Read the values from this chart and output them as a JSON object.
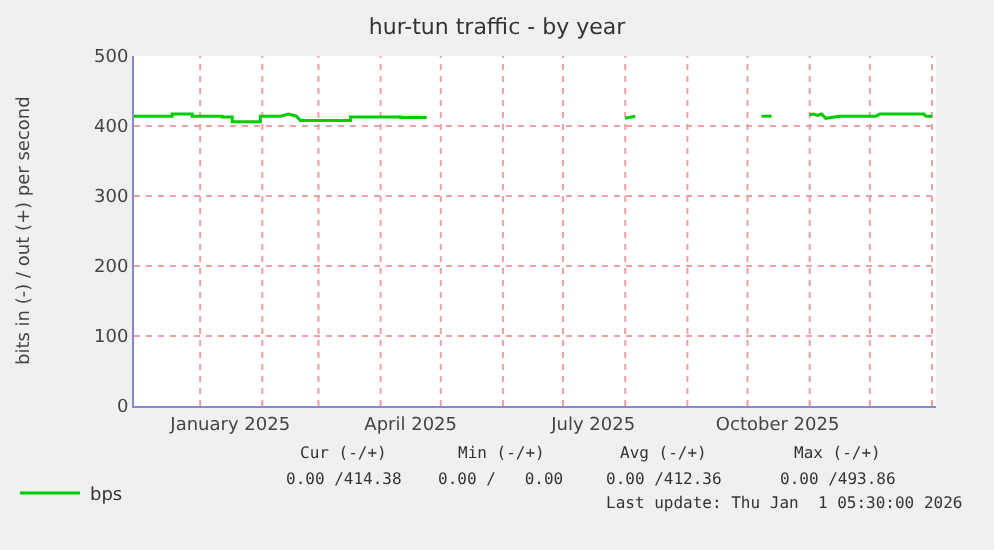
{
  "chart_data": {
    "type": "line",
    "title": "hur-tun traffic - by year",
    "ylabel": "bits in (-) / out (+) per second",
    "x": [
      "2024-11-29",
      "2024-12-18",
      "2024-12-18",
      "2024-12-28",
      "2024-12-28",
      "2025-01-12",
      "2025-01-12",
      "2025-01-17",
      "2025-01-17",
      "2025-01-31",
      "2025-01-31",
      "2025-02-10",
      "2025-02-14",
      "2025-02-18",
      "2025-02-20",
      "2025-03-17",
      "2025-03-17",
      "2025-04-11",
      "2025-04-11",
      "2025-04-24",
      "2025-04-25",
      "2025-08-01",
      "2025-08-06",
      "2025-08-07",
      "2025-10-08",
      "2025-10-13",
      "2025-10-14",
      "2025-11-01",
      "2025-11-03",
      "2025-11-05",
      "2025-11-07",
      "2025-11-09",
      "2025-11-16",
      "2025-12-04",
      "2025-12-06",
      "2025-12-28",
      "2025-12-29",
      "2026-01-01"
    ],
    "series": [
      {
        "name": "bps",
        "color": "#00cc00",
        "values": [
          414,
          414,
          417,
          417,
          414,
          414,
          413,
          413,
          406,
          406,
          414,
          414,
          417,
          414,
          408,
          408,
          413,
          413,
          412,
          412,
          null,
          411,
          414,
          null,
          414,
          414,
          null,
          416,
          417,
          415,
          417,
          411,
          414,
          414,
          417,
          417,
          414,
          414
        ]
      }
    ],
    "xlim": [
      "2024-11-29",
      "2026-01-03"
    ],
    "xticks": [
      {
        "value": "2025-01-01",
        "label": null
      },
      {
        "value": "2025-01-16",
        "label": "January 2025"
      },
      {
        "value": "2025-02-01",
        "label": null
      },
      {
        "value": "2025-03-01",
        "label": null
      },
      {
        "value": "2025-04-01",
        "label": null
      },
      {
        "value": "2025-04-16",
        "label": "April 2025"
      },
      {
        "value": "2025-05-01",
        "label": null
      },
      {
        "value": "2025-06-01",
        "label": null
      },
      {
        "value": "2025-07-01",
        "label": null
      },
      {
        "value": "2025-07-16",
        "label": "July 2025"
      },
      {
        "value": "2025-08-01",
        "label": null
      },
      {
        "value": "2025-09-01",
        "label": null
      },
      {
        "value": "2025-10-01",
        "label": null
      },
      {
        "value": "2025-10-16",
        "label": "October 2025"
      },
      {
        "value": "2025-11-01",
        "label": null
      },
      {
        "value": "2025-12-01",
        "label": null
      },
      {
        "value": "2026-01-01",
        "label": null
      }
    ],
    "ylim": [
      0,
      500
    ],
    "yticks": [
      0,
      100,
      200,
      300,
      400,
      500
    ],
    "grid": true,
    "legend": "bottom left",
    "marker": "none",
    "line_style": "solid",
    "annotations": [
      "Cur (-/+)",
      "Min (-/+)",
      "Avg (-/+)",
      "Max (-/+)",
      "0.00 /414.38",
      "0.00 /   0.00",
      "0.00 /412.36",
      "0.00 /493.86",
      "Last update: Thu Jan  1 05:30:00 2026"
    ]
  }
}
